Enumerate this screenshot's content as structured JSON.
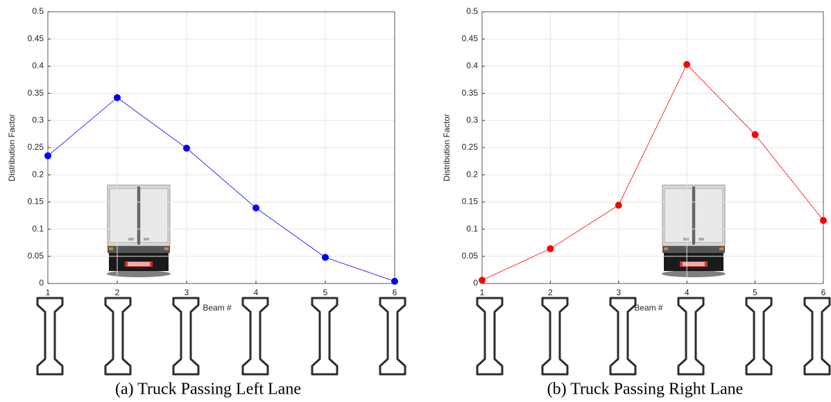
{
  "chart_data": [
    {
      "type": "line",
      "caption": "(a) Truck Passing Left Lane",
      "y_label": "Distribution Factor",
      "x_label": "Beam #",
      "x": [
        1,
        2,
        3,
        4,
        5,
        6
      ],
      "series": [
        {
          "color": "#0000ff",
          "values": [
            0.235,
            0.342,
            0.249,
            0.139,
            0.048,
            0.004
          ]
        }
      ],
      "xlim": [
        1,
        6
      ],
      "xticks": [
        1,
        2,
        3,
        4,
        5,
        6
      ],
      "ylim": [
        0,
        0.5
      ],
      "yticks": [
        0,
        0.05,
        0.1,
        0.15,
        0.2,
        0.25,
        0.3,
        0.35,
        0.4,
        0.45,
        0.5
      ],
      "grid": true
    },
    {
      "type": "line",
      "caption": "(b) Truck Passing Right Lane",
      "y_label": "Distribution Factor",
      "x_label": "Beam #",
      "x": [
        1,
        2,
        3,
        4,
        5,
        6
      ],
      "series": [
        {
          "color": "#ff0000",
          "values": [
            0.006,
            0.064,
            0.144,
            0.403,
            0.274,
            0.116
          ]
        }
      ],
      "xlim": [
        1,
        6
      ],
      "xticks": [
        1,
        2,
        3,
        4,
        5,
        6
      ],
      "ylim": [
        0,
        0.5
      ],
      "yticks": [
        0,
        0.05,
        0.1,
        0.15,
        0.2,
        0.25,
        0.3,
        0.35,
        0.4,
        0.45,
        0.5
      ],
      "grid": true
    }
  ]
}
